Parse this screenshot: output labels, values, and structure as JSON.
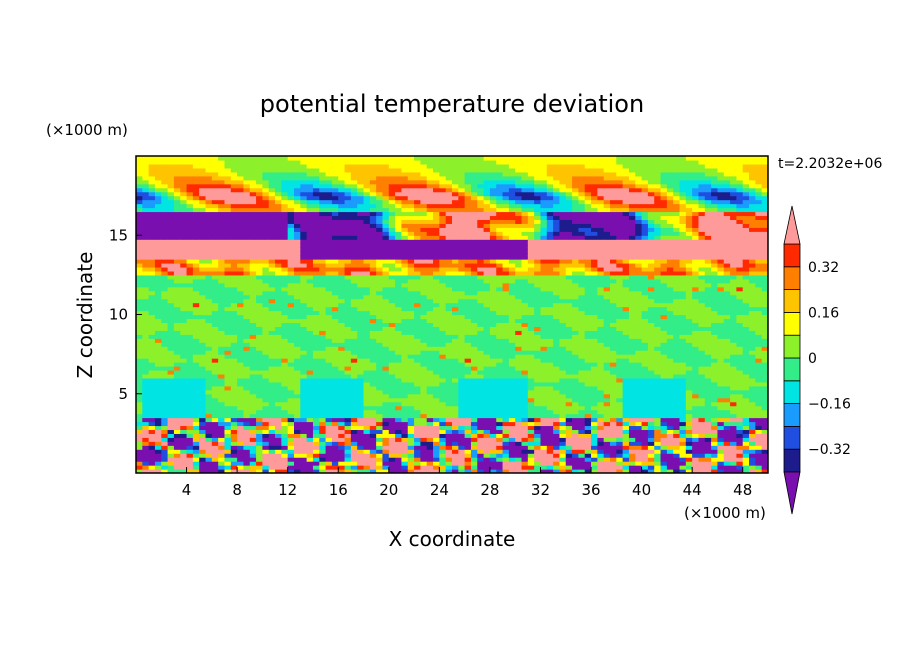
{
  "chart_data": {
    "type": "heatmap",
    "title": "potential temperature deviation",
    "xlabel": "X coordinate",
    "ylabel": "Z coordinate",
    "x_unit": "(×1000 m)",
    "y_unit": "(×1000 m)",
    "time_label": "t=2.2032e+06",
    "xlim": [
      0,
      50
    ],
    "ylim": [
      0,
      20
    ],
    "x_ticks": [
      "4",
      "8",
      "12",
      "16",
      "20",
      "24",
      "28",
      "32",
      "36",
      "40",
      "44",
      "48"
    ],
    "y_ticks": [
      "5",
      "10",
      "15"
    ],
    "colorbar_labels": [
      "0.32",
      "0.16",
      "0",
      "−0.16",
      "−0.32"
    ],
    "colorbar_colors": [
      "#7a0fb0",
      "#1c1c8c",
      "#1f4ee0",
      "#1a9cff",
      "#00e4e4",
      "#33ee88",
      "#8cf02a",
      "#ffff00",
      "#ffc400",
      "#ff7f00",
      "#ff2a00",
      "#ff9a9a"
    ],
    "bands": [
      {
        "z0": 0.0,
        "z1": 3.5,
        "pattern": "turbulent"
      },
      {
        "z0": 3.5,
        "z1": 12.5,
        "pattern": "near-zero"
      },
      {
        "z0": 12.5,
        "z1": 13.5,
        "pattern": "positive-layer"
      },
      {
        "z0": 13.5,
        "z1": 16.5,
        "pattern": "strong-dipole"
      },
      {
        "z0": 16.5,
        "z1": 20.0,
        "pattern": "upper-mixed"
      }
    ]
  }
}
